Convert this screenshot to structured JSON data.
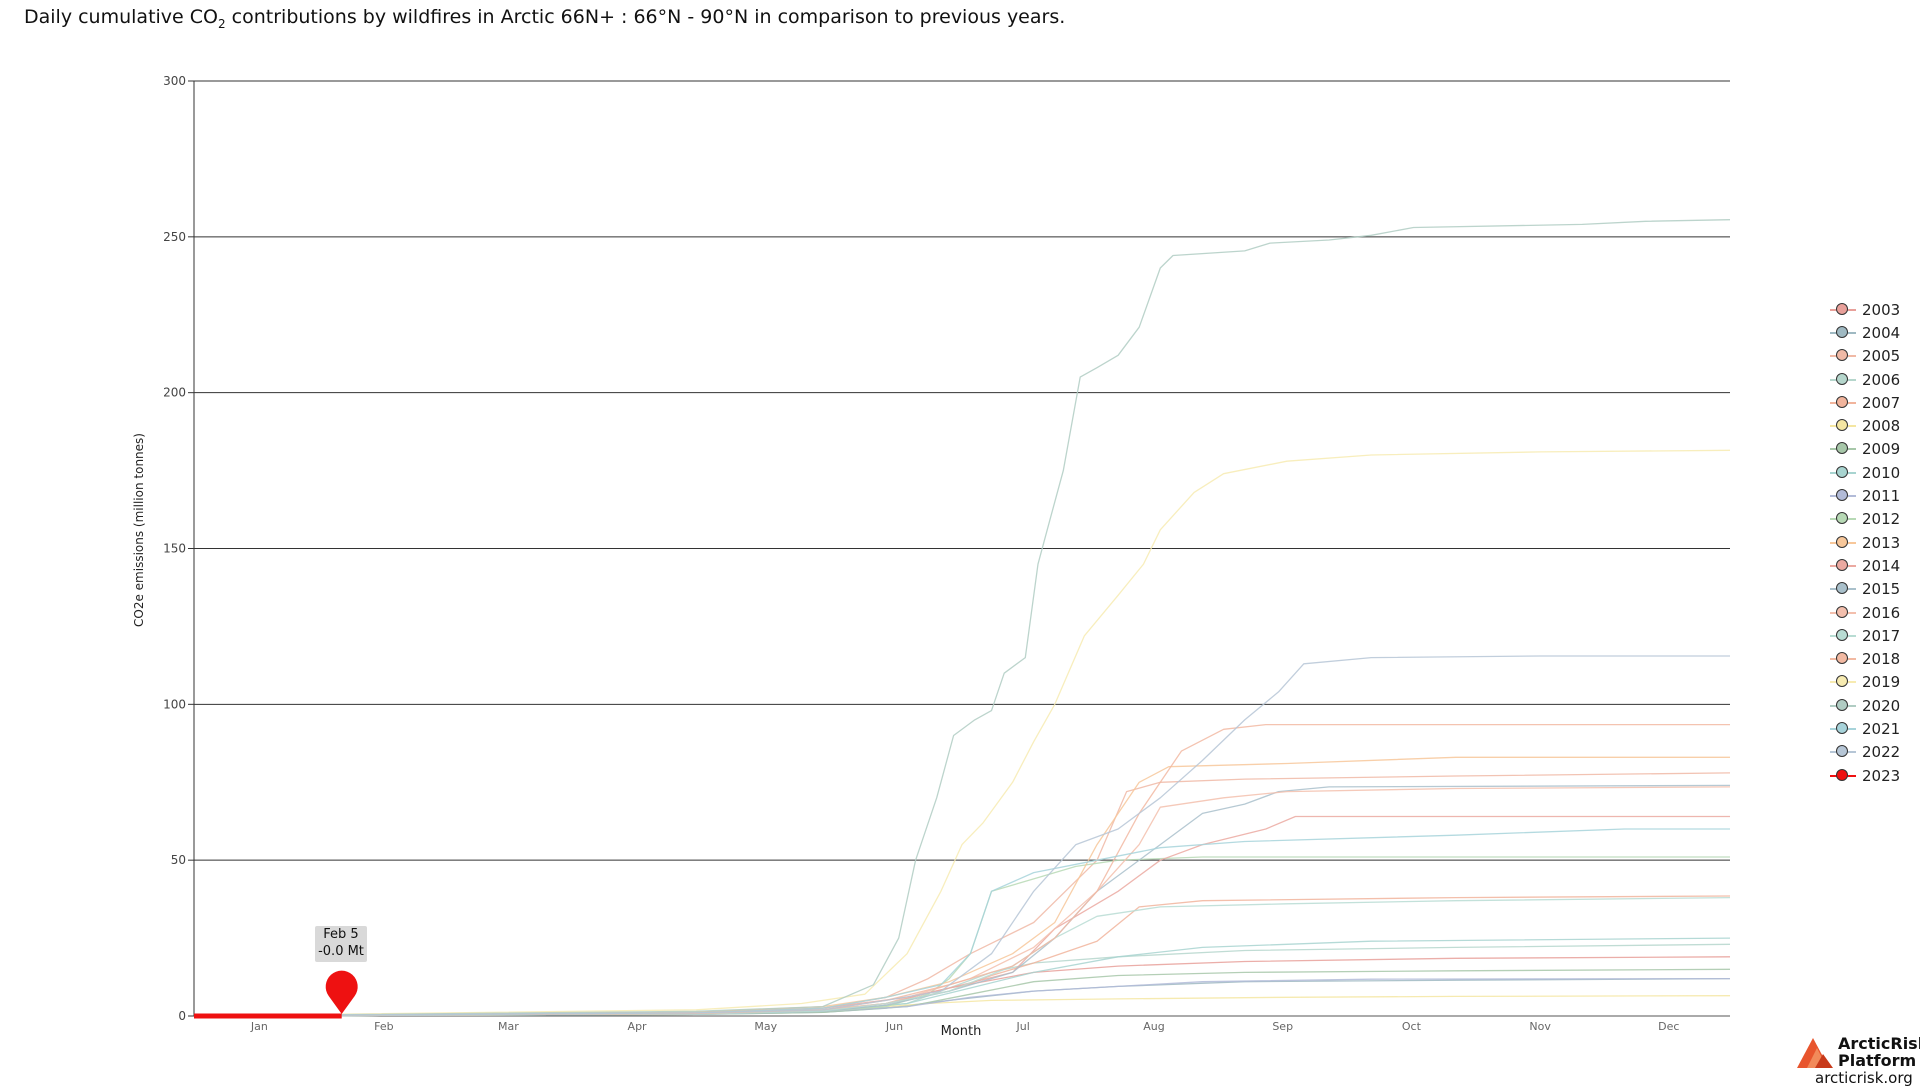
{
  "title": {
    "prefix": "Daily cumulative CO",
    "sub": "2",
    "suffix": " contributions by wildfires in Arctic 66N+ : 66°N - 90°N in comparison to previous years."
  },
  "tooltip": {
    "date": "Feb 5",
    "value": "-0.0 Mt"
  },
  "logo": {
    "name": "ArcticRisk Platform",
    "url": "arcticrisk.org"
  },
  "chart_data": {
    "type": "line",
    "title": "Daily cumulative CO2 contributions by wildfires in Arctic 66N+ : 66°N - 90°N in comparison to previous years.",
    "xlabel": "Month",
    "ylabel": "CO2e emissions (million tonnes)",
    "x_ticks": [
      "Jan",
      "Feb",
      "Mar",
      "Apr",
      "May",
      "Jun",
      "Jul",
      "Aug",
      "Sep",
      "Oct",
      "Nov",
      "Dec"
    ],
    "xlim": [
      1,
      365
    ],
    "ylim": [
      0,
      300
    ],
    "y_ticks": [
      0,
      50,
      100,
      150,
      200,
      250,
      300
    ],
    "grid": "horizontal",
    "legend_position": "right",
    "series": [
      {
        "name": "2003",
        "color": "#e8a09a",
        "values": [
          [
            1,
            0
          ],
          [
            120,
            0.8
          ],
          [
            150,
            1.8
          ],
          [
            165,
            4
          ],
          [
            180,
            9
          ],
          [
            200,
            14
          ],
          [
            220,
            16
          ],
          [
            250,
            17.5
          ],
          [
            300,
            18.5
          ],
          [
            365,
            19
          ]
        ]
      },
      {
        "name": "2004",
        "color": "#9fb9c2",
        "values": [
          [
            1,
            0
          ],
          [
            120,
            0.5
          ],
          [
            150,
            1.2
          ],
          [
            165,
            2.5
          ],
          [
            180,
            5
          ],
          [
            200,
            8
          ],
          [
            220,
            9.5
          ],
          [
            250,
            11
          ],
          [
            300,
            11.5
          ],
          [
            365,
            12
          ]
        ]
      },
      {
        "name": "2005",
        "color": "#f0b9a6",
        "values": [
          [
            1,
            0
          ],
          [
            120,
            1.2
          ],
          [
            150,
            2.5
          ],
          [
            165,
            6
          ],
          [
            175,
            12
          ],
          [
            185,
            20
          ],
          [
            200,
            30
          ],
          [
            215,
            50
          ],
          [
            222,
            72
          ],
          [
            230,
            75
          ],
          [
            250,
            76
          ],
          [
            300,
            77
          ],
          [
            365,
            78
          ]
        ]
      },
      {
        "name": "2006",
        "color": "#b5d6cc",
        "values": [
          [
            1,
            0
          ],
          [
            120,
            0.5
          ],
          [
            150,
            1.5
          ],
          [
            170,
            4
          ],
          [
            180,
            9
          ],
          [
            190,
            14
          ],
          [
            200,
            17
          ],
          [
            220,
            19
          ],
          [
            250,
            21
          ],
          [
            300,
            22
          ],
          [
            365,
            23
          ]
        ]
      },
      {
        "name": "2007",
        "color": "#f1b49c",
        "values": [
          [
            1,
            0
          ],
          [
            120,
            0.8
          ],
          [
            150,
            2
          ],
          [
            165,
            4
          ],
          [
            180,
            8
          ],
          [
            190,
            13
          ],
          [
            200,
            17
          ],
          [
            215,
            24
          ],
          [
            225,
            35
          ],
          [
            240,
            37
          ],
          [
            300,
            38
          ],
          [
            365,
            38.5
          ]
        ]
      },
      {
        "name": "2008",
        "color": "#f4e6a2",
        "values": [
          [
            1,
            0
          ],
          [
            120,
            0.5
          ],
          [
            150,
            1.5
          ],
          [
            160,
            2.5
          ],
          [
            175,
            4
          ],
          [
            190,
            5
          ],
          [
            220,
            5.5
          ],
          [
            260,
            6
          ],
          [
            300,
            6.3
          ],
          [
            365,
            6.5
          ]
        ]
      },
      {
        "name": "2009",
        "color": "#a7c7a9",
        "values": [
          [
            1,
            0
          ],
          [
            120,
            0.5
          ],
          [
            150,
            1.2
          ],
          [
            170,
            3
          ],
          [
            185,
            7
          ],
          [
            200,
            11
          ],
          [
            220,
            13
          ],
          [
            250,
            14
          ],
          [
            300,
            14.5
          ],
          [
            365,
            15
          ]
        ]
      },
      {
        "name": "2010",
        "color": "#a8d4d0",
        "values": [
          [
            1,
            0
          ],
          [
            120,
            0.7
          ],
          [
            150,
            1.6
          ],
          [
            170,
            4
          ],
          [
            185,
            9
          ],
          [
            200,
            14
          ],
          [
            220,
            19
          ],
          [
            240,
            22
          ],
          [
            280,
            24
          ],
          [
            365,
            25
          ]
        ]
      },
      {
        "name": "2011",
        "color": "#b2bbd8",
        "values": [
          [
            1,
            0
          ],
          [
            120,
            0.6
          ],
          [
            150,
            1.5
          ],
          [
            170,
            3
          ],
          [
            185,
            6
          ],
          [
            200,
            8
          ],
          [
            220,
            9.5
          ],
          [
            240,
            11
          ],
          [
            280,
            11.8
          ],
          [
            365,
            12
          ]
        ]
      },
      {
        "name": "2012",
        "color": "#b7d9b5",
        "values": [
          [
            1,
            0
          ],
          [
            120,
            0.6
          ],
          [
            150,
            1.5
          ],
          [
            165,
            3
          ],
          [
            175,
            7
          ],
          [
            180,
            12
          ],
          [
            185,
            20
          ],
          [
            190,
            40
          ],
          [
            200,
            44
          ],
          [
            210,
            48
          ],
          [
            220,
            50
          ],
          [
            240,
            51
          ],
          [
            300,
            51
          ],
          [
            365,
            51
          ]
        ]
      },
      {
        "name": "2013",
        "color": "#f7c79a",
        "values": [
          [
            1,
            0
          ],
          [
            120,
            1.2
          ],
          [
            150,
            3
          ],
          [
            165,
            6
          ],
          [
            180,
            11
          ],
          [
            195,
            20
          ],
          [
            205,
            30
          ],
          [
            215,
            55
          ],
          [
            225,
            75
          ],
          [
            232,
            80
          ],
          [
            260,
            81
          ],
          [
            300,
            83
          ],
          [
            365,
            83
          ]
        ]
      },
      {
        "name": "2014",
        "color": "#eba9a1",
        "values": [
          [
            1,
            0
          ],
          [
            120,
            1
          ],
          [
            150,
            2.5
          ],
          [
            170,
            6
          ],
          [
            180,
            9
          ],
          [
            195,
            14
          ],
          [
            205,
            28
          ],
          [
            220,
            40
          ],
          [
            230,
            50
          ],
          [
            240,
            55
          ],
          [
            255,
            60
          ],
          [
            262,
            64
          ],
          [
            300,
            64
          ],
          [
            365,
            64
          ]
        ]
      },
      {
        "name": "2015",
        "color": "#a9c0cb",
        "values": [
          [
            1,
            0
          ],
          [
            120,
            0.5
          ],
          [
            150,
            1.5
          ],
          [
            165,
            3.5
          ],
          [
            180,
            8
          ],
          [
            195,
            14
          ],
          [
            205,
            25
          ],
          [
            215,
            40
          ],
          [
            230,
            55
          ],
          [
            240,
            65
          ],
          [
            250,
            68
          ],
          [
            258,
            72
          ],
          [
            270,
            73.5
          ],
          [
            365,
            74
          ]
        ]
      },
      {
        "name": "2016",
        "color": "#f3bfad",
        "values": [
          [
            1,
            0
          ],
          [
            120,
            0.9
          ],
          [
            150,
            2
          ],
          [
            165,
            4
          ],
          [
            175,
            8
          ],
          [
            185,
            12
          ],
          [
            200,
            22
          ],
          [
            215,
            40
          ],
          [
            225,
            55
          ],
          [
            230,
            67
          ],
          [
            245,
            70
          ],
          [
            260,
            72
          ],
          [
            300,
            73
          ],
          [
            365,
            73.5
          ]
        ]
      },
      {
        "name": "2017",
        "color": "#b8dcd3",
        "values": [
          [
            1,
            0
          ],
          [
            120,
            0.6
          ],
          [
            150,
            1.6
          ],
          [
            165,
            4
          ],
          [
            180,
            8
          ],
          [
            195,
            16
          ],
          [
            205,
            25
          ],
          [
            215,
            32
          ],
          [
            230,
            35
          ],
          [
            260,
            36
          ],
          [
            300,
            37
          ],
          [
            365,
            38
          ]
        ]
      },
      {
        "name": "2018",
        "color": "#f2b9a2",
        "values": [
          [
            1,
            0
          ],
          [
            120,
            0.8
          ],
          [
            150,
            2
          ],
          [
            165,
            5
          ],
          [
            180,
            10
          ],
          [
            195,
            16
          ],
          [
            205,
            25
          ],
          [
            215,
            40
          ],
          [
            225,
            65
          ],
          [
            235,
            85
          ],
          [
            245,
            92
          ],
          [
            255,
            93.5
          ],
          [
            365,
            93.5
          ]
        ]
      },
      {
        "name": "2019",
        "color": "#f7ebb1",
        "values": [
          [
            1,
            0
          ],
          [
            120,
            2
          ],
          [
            145,
            4
          ],
          [
            160,
            7
          ],
          [
            170,
            20
          ],
          [
            178,
            40
          ],
          [
            183,
            55
          ],
          [
            188,
            62
          ],
          [
            195,
            75
          ],
          [
            200,
            88
          ],
          [
            205,
            100
          ],
          [
            212,
            122
          ],
          [
            220,
            135
          ],
          [
            226,
            145
          ],
          [
            230,
            156
          ],
          [
            238,
            168
          ],
          [
            245,
            174
          ],
          [
            260,
            178
          ],
          [
            280,
            180
          ],
          [
            320,
            181
          ],
          [
            365,
            181.5
          ]
        ]
      },
      {
        "name": "2020",
        "color": "#b0ccc3",
        "values": [
          [
            1,
            0
          ],
          [
            120,
            1.5
          ],
          [
            150,
            3
          ],
          [
            162,
            10
          ],
          [
            168,
            25
          ],
          [
            172,
            50
          ],
          [
            177,
            70
          ],
          [
            181,
            90
          ],
          [
            186,
            95
          ],
          [
            190,
            98
          ],
          [
            193,
            110
          ],
          [
            198,
            115
          ],
          [
            201,
            145
          ],
          [
            204,
            160
          ],
          [
            207,
            175
          ],
          [
            211,
            205
          ],
          [
            215,
            208
          ],
          [
            220,
            212
          ],
          [
            225,
            221
          ],
          [
            230,
            240
          ],
          [
            233,
            244
          ],
          [
            250,
            245.5
          ],
          [
            256,
            248
          ],
          [
            270,
            249
          ],
          [
            280,
            250.5
          ],
          [
            290,
            253
          ],
          [
            330,
            254
          ],
          [
            345,
            255
          ],
          [
            365,
            255.5
          ]
        ]
      },
      {
        "name": "2021",
        "color": "#a7d3da",
        "values": [
          [
            1,
            0
          ],
          [
            120,
            1
          ],
          [
            150,
            2.5
          ],
          [
            165,
            6
          ],
          [
            178,
            10
          ],
          [
            185,
            20
          ],
          [
            190,
            40
          ],
          [
            200,
            46
          ],
          [
            215,
            50
          ],
          [
            230,
            54
          ],
          [
            250,
            56
          ],
          [
            300,
            58
          ],
          [
            340,
            60
          ],
          [
            365,
            60
          ]
        ]
      },
      {
        "name": "2022",
        "color": "#b6c6d6",
        "values": [
          [
            1,
            0
          ],
          [
            120,
            1
          ],
          [
            150,
            2
          ],
          [
            165,
            5
          ],
          [
            178,
            8
          ],
          [
            190,
            20
          ],
          [
            200,
            40
          ],
          [
            210,
            55
          ],
          [
            220,
            60
          ],
          [
            230,
            70
          ],
          [
            240,
            82
          ],
          [
            250,
            95
          ],
          [
            258,
            104
          ],
          [
            264,
            113
          ],
          [
            280,
            115
          ],
          [
            320,
            115.5
          ],
          [
            365,
            115.5
          ]
        ]
      },
      {
        "name": "2023",
        "color": "#ee1111",
        "values": [
          [
            1,
            0
          ],
          [
            36,
            0
          ]
        ],
        "highlight": true
      }
    ]
  }
}
